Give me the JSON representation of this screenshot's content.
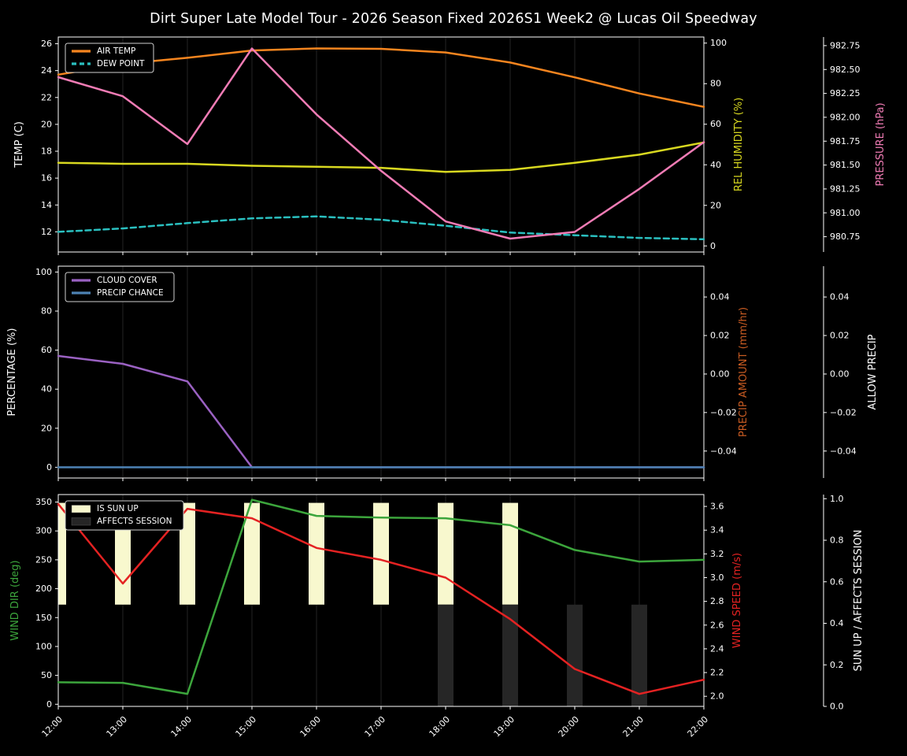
{
  "title": "Dirt Super Late Model Tour - 2026 Season Fixed 2026S1 Week2 @ Lucas Oil Speedway",
  "x_labels": [
    "12:00",
    "13:00",
    "14:00",
    "15:00",
    "16:00",
    "17:00",
    "18:00",
    "19:00",
    "20:00",
    "21:00",
    "22:00"
  ],
  "colors": {
    "background": "#000000",
    "text": "#ffffff",
    "grid": "#232323",
    "spine": "#ffffff",
    "air_temp": "#f6851f",
    "dew_point": "#2abfbf",
    "rel_humidity": "#d8d820",
    "pressure": "#f17cb5",
    "cloud_cover": "#9a61c2",
    "precip_chance": "#4d82b4",
    "precip_amount": "#c75b22",
    "allow_precip": "#ffffff",
    "wind_dir": "#3ca53c",
    "wind_speed": "#e42222",
    "sun_up_bar": "#f8f8ce",
    "affects_session_bar": "#262626"
  },
  "chart_data": [
    {
      "type": "line",
      "name": "temp-humidity-pressure-panel",
      "x": [
        "12:00",
        "13:00",
        "14:00",
        "15:00",
        "16:00",
        "17:00",
        "18:00",
        "19:00",
        "20:00",
        "21:00",
        "22:00"
      ],
      "axes": {
        "left": {
          "label": "TEMP (C)",
          "color_key": "text",
          "lim": [
            10.5,
            26.5
          ],
          "tick_values": [
            12,
            14,
            16,
            18,
            20,
            22,
            24,
            26
          ],
          "tick_labels": [
            "12",
            "14",
            "16",
            "18",
            "20",
            "22",
            "24",
            "26"
          ]
        },
        "right": {
          "label": "REL HUMIDITY (%)",
          "color_key": "rel_humidity",
          "lim": [
            -3,
            103
          ],
          "tick_values": [
            0,
            20,
            40,
            60,
            80,
            100
          ],
          "tick_labels": [
            "0",
            "20",
            "40",
            "60",
            "80",
            "100"
          ]
        },
        "offset": {
          "label": "PRESSURE (hPa)",
          "color_key": "pressure",
          "lim": [
            980.59,
            982.84
          ],
          "tick_values": [
            980.75,
            981.0,
            981.25,
            981.5,
            981.75,
            982.0,
            982.25,
            982.5,
            982.75
          ],
          "tick_labels": [
            "980.75",
            "981.00",
            "981.25",
            "981.50",
            "981.75",
            "982.00",
            "982.25",
            "982.50",
            "982.75"
          ]
        }
      },
      "series": [
        {
          "name": "AIR TEMP",
          "key": "air_temp",
          "axis": "left",
          "dash": false,
          "values": [
            23.7,
            24.5,
            24.95,
            25.5,
            25.65,
            25.62,
            25.35,
            24.6,
            23.5,
            22.3,
            21.3
          ]
        },
        {
          "name": "DEW POINT",
          "key": "dew_point",
          "axis": "left",
          "dash": true,
          "values": [
            12.0,
            12.25,
            12.65,
            13.0,
            13.15,
            12.9,
            12.45,
            11.95,
            11.75,
            11.55,
            11.45
          ]
        },
        {
          "name": "REL HUMIDITY",
          "key": "rel_humidity",
          "axis": "right",
          "dash": false,
          "values": [
            41,
            40.5,
            40.5,
            39.5,
            39,
            38.5,
            36.5,
            37.5,
            41,
            45,
            51
          ]
        },
        {
          "name": "PRESSURE",
          "key": "pressure",
          "axis": "offset",
          "dash": false,
          "values": [
            982.42,
            982.22,
            981.72,
            982.72,
            982.03,
            981.44,
            980.91,
            980.73,
            980.8,
            981.25,
            981.74
          ]
        }
      ],
      "legend": {
        "swatch": "line",
        "entries": [
          {
            "label": "AIR TEMP",
            "key": "air_temp",
            "dash": false
          },
          {
            "label": "DEW POINT",
            "key": "dew_point",
            "dash": true
          }
        ]
      }
    },
    {
      "type": "line",
      "name": "cloud-precip-panel",
      "x": [
        "12:00",
        "13:00",
        "14:00",
        "15:00",
        "16:00",
        "17:00",
        "18:00",
        "19:00",
        "20:00",
        "21:00",
        "22:00"
      ],
      "axes": {
        "left": {
          "label": "PERCENTAGE (%)",
          "color_key": "text",
          "lim": [
            -5.5,
            103
          ],
          "tick_values": [
            0,
            20,
            40,
            60,
            80,
            100
          ],
          "tick_labels": [
            "0",
            "20",
            "40",
            "60",
            "80",
            "100"
          ]
        },
        "right": {
          "label": "PRECIP AMOUNT (mm/hr)",
          "color_key": "precip_amount",
          "lim": [
            -0.054,
            0.056
          ],
          "tick_values": [
            -0.04,
            -0.02,
            0.0,
            0.02,
            0.04
          ],
          "tick_labels": [
            "−0.04",
            "−0.02",
            "0.00",
            "0.02",
            "0.04"
          ]
        },
        "offset": {
          "label": "ALLOW PRECIP",
          "color_key": "allow_precip",
          "lim": [
            -0.054,
            0.056
          ],
          "tick_values": [
            -0.04,
            -0.02,
            0.0,
            0.02,
            0.04
          ],
          "tick_labels": [
            "−0.04",
            "−0.02",
            "0.00",
            "0.02",
            "0.04"
          ]
        }
      },
      "series": [
        {
          "name": "CLOUD COVER",
          "key": "cloud_cover",
          "axis": "left",
          "dash": false,
          "values": [
            57,
            53,
            44,
            0,
            0,
            0,
            0,
            0,
            0,
            0,
            0
          ]
        },
        {
          "name": "PRECIP CHANCE",
          "key": "precip_chance",
          "axis": "left",
          "dash": false,
          "values": [
            0,
            0,
            0,
            0,
            0,
            0,
            0,
            0,
            0,
            0,
            0
          ]
        }
      ],
      "legend": {
        "swatch": "line",
        "entries": [
          {
            "label": "CLOUD COVER",
            "key": "cloud_cover",
            "dash": false
          },
          {
            "label": "PRECIP CHANCE",
            "key": "precip_chance",
            "dash": false
          }
        ]
      }
    },
    {
      "type": "line+bar",
      "name": "wind-sun-panel",
      "x": [
        "12:00",
        "13:00",
        "14:00",
        "15:00",
        "16:00",
        "17:00",
        "18:00",
        "19:00",
        "20:00",
        "21:00",
        "22:00"
      ],
      "axes": {
        "left": {
          "label": "WIND DIR (deg)",
          "color_key": "wind_dir",
          "lim": [
            -3.7,
            363
          ],
          "tick_values": [
            0,
            50,
            100,
            150,
            200,
            250,
            300,
            350
          ],
          "tick_labels": [
            "0",
            "50",
            "100",
            "150",
            "200",
            "250",
            "300",
            "350"
          ]
        },
        "right": {
          "label": "WIND SPEED (m/s)",
          "color_key": "wind_speed",
          "lim": [
            1.915,
            3.7
          ],
          "tick_values": [
            2.0,
            2.2,
            2.4,
            2.6,
            2.8,
            3.0,
            3.2,
            3.4,
            3.6
          ],
          "tick_labels": [
            "2.0",
            "2.2",
            "2.4",
            "2.6",
            "2.8",
            "3.0",
            "3.2",
            "3.4",
            "3.6"
          ]
        },
        "offset": {
          "label": "SUN UP / AFFECTS SESSION",
          "color_key": "text",
          "lim": [
            0,
            1.02
          ],
          "tick_values": [
            0.0,
            0.2,
            0.4,
            0.6,
            0.8,
            1.0
          ],
          "tick_labels": [
            "0.0",
            "0.2",
            "0.4",
            "0.6",
            "0.8",
            "1.0"
          ]
        }
      },
      "bars": [
        {
          "name": "IS SUN UP",
          "key": "sun_up_bar",
          "axis": "offset",
          "span": [
            0.49,
            0.98
          ],
          "on": [
            1,
            1,
            1,
            1,
            1,
            1,
            1,
            1,
            0,
            0,
            0
          ]
        },
        {
          "name": "AFFECTS SESSION",
          "key": "affects_session_bar",
          "axis": "offset",
          "span": [
            0.0,
            0.49
          ],
          "on": [
            0,
            0,
            0,
            0,
            0,
            0,
            1,
            1,
            1,
            1,
            0
          ]
        }
      ],
      "series": [
        {
          "name": "WIND DIR",
          "key": "wind_dir",
          "axis": "left",
          "dash": false,
          "values": [
            38,
            37,
            18,
            354,
            326,
            323,
            322,
            310,
            267,
            247,
            250
          ]
        },
        {
          "name": "WIND SPEED",
          "key": "wind_speed",
          "axis": "right",
          "dash": false,
          "values": [
            3.62,
            2.95,
            3.58,
            3.5,
            3.25,
            3.15,
            3.0,
            2.65,
            2.23,
            2.02,
            2.14
          ]
        }
      ],
      "legend": {
        "swatch": "patch",
        "entries": [
          {
            "label": "IS SUN UP",
            "key": "sun_up_bar"
          },
          {
            "label": "AFFECTS SESSION",
            "key": "affects_session_bar"
          }
        ]
      }
    }
  ]
}
